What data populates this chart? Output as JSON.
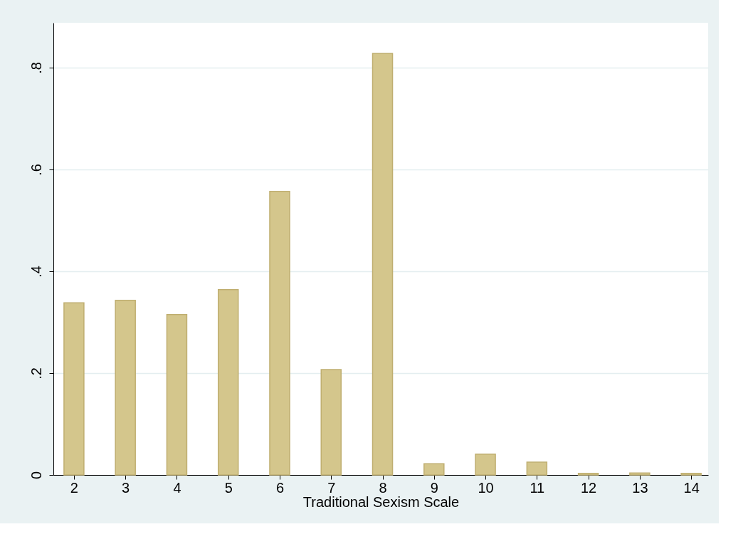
{
  "chart_data": {
    "type": "bar",
    "xlabel": "Traditional Sexism Scale",
    "x": [
      2,
      3,
      4,
      5,
      6,
      7,
      8,
      9,
      10,
      11,
      12,
      13,
      14
    ],
    "values": [
      0.338,
      0.343,
      0.315,
      0.364,
      0.557,
      0.207,
      0.828,
      0.022,
      0.041,
      0.025,
      0.003,
      0.004,
      0.003
    ],
    "color": "#d4c68c",
    "xlim": [
      1.6,
      14.33
    ],
    "xticks": [
      2,
      3,
      4,
      5,
      6,
      7,
      8,
      9,
      10,
      11,
      12,
      13,
      14
    ],
    "ylim": [
      0,
      0.888
    ],
    "yticks": [
      {
        "value": 0,
        "label": "0"
      },
      {
        "value": 0.2,
        "label": ".2"
      },
      {
        "value": 0.4,
        "label": ".4"
      },
      {
        "value": 0.6,
        "label": ".6"
      },
      {
        "value": 0.8,
        "label": ".8"
      }
    ],
    "grid": "y"
  }
}
